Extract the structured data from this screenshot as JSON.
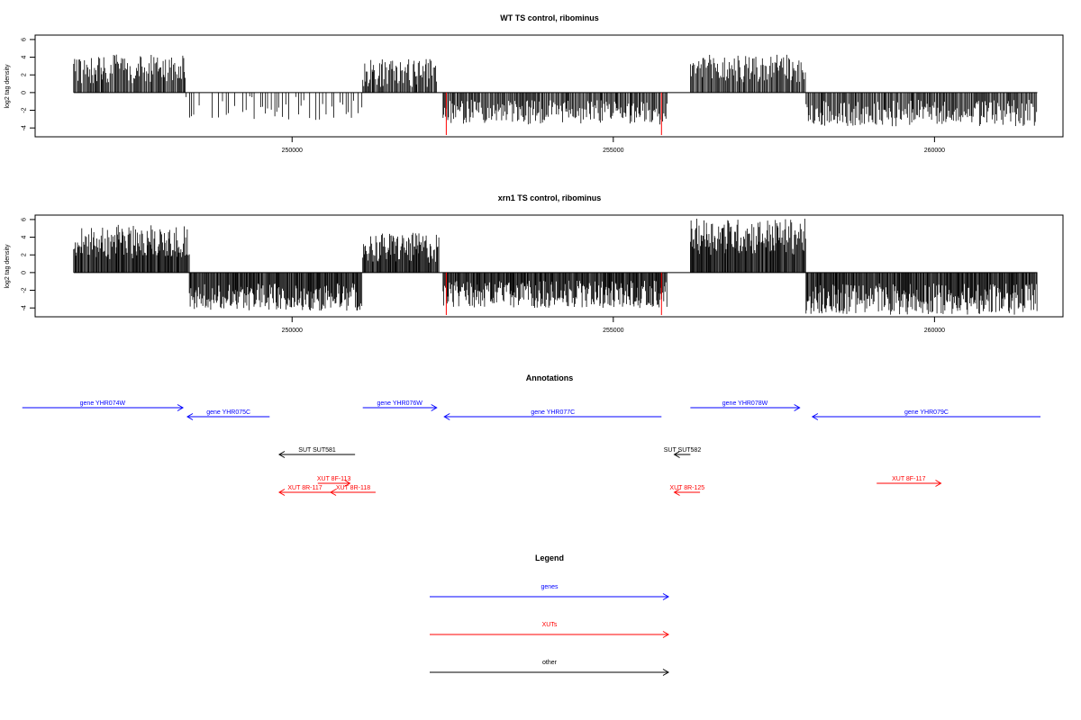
{
  "chart_data": [
    {
      "type": "bar",
      "title": "WT TS control, ribominus",
      "ylabel": "log2 tag density",
      "xlabel": "",
      "xlim": [
        246000,
        262000
      ],
      "ylim": [
        -5,
        6.5
      ],
      "yticks": [
        -4,
        -2,
        0,
        2,
        4,
        6
      ],
      "ytick_labels": [
        "-4",
        "-2",
        "0",
        "2",
        "4",
        "6"
      ],
      "xticks": [
        250000,
        255000,
        260000
      ],
      "xtick_labels": [
        "250000",
        "255000",
        "260000"
      ],
      "grid": false,
      "highlights": [
        {
          "x": 252400,
          "value": -4.8,
          "color": "#ff0000"
        },
        {
          "x": 255750,
          "value": -4.8,
          "color": "#ff0000"
        }
      ],
      "regions": [
        {
          "start": 246600,
          "end": 248350,
          "strand": "+",
          "min": 1.0,
          "max": 4.3
        },
        {
          "start": 248350,
          "end": 251100,
          "strand": "-",
          "min": 0.4,
          "max": 3.1,
          "sparse": true
        },
        {
          "start": 251100,
          "end": 252250,
          "strand": "+",
          "min": 0.6,
          "max": 3.8
        },
        {
          "start": 252350,
          "end": 255850,
          "strand": "-",
          "min": 0.8,
          "max": 3.6
        },
        {
          "start": 256200,
          "end": 258000,
          "strand": "+",
          "min": 0.9,
          "max": 4.3
        },
        {
          "start": 258000,
          "end": 261600,
          "strand": "-",
          "min": 0.8,
          "max": 3.8
        }
      ]
    },
    {
      "type": "bar",
      "title": "xrn1 TS control, ribominus",
      "ylabel": "log2 tag density",
      "xlabel": "",
      "xlim": [
        246000,
        262000
      ],
      "ylim": [
        -5,
        6.5
      ],
      "yticks": [
        -4,
        -2,
        0,
        2,
        4,
        6
      ],
      "ytick_labels": [
        "-4",
        "-2",
        "0",
        "2",
        "4",
        "6"
      ],
      "xticks": [
        250000,
        255000,
        260000
      ],
      "xtick_labels": [
        "250000",
        "255000",
        "260000"
      ],
      "grid": false,
      "highlights": [
        {
          "x": 252400,
          "value": -4.8,
          "color": "#ff0000"
        },
        {
          "x": 255750,
          "value": -4.8,
          "color": "#ff0000"
        }
      ],
      "regions": [
        {
          "start": 246600,
          "end": 248400,
          "strand": "+",
          "min": 1.5,
          "max": 5.4
        },
        {
          "start": 248400,
          "end": 251100,
          "strand": "-",
          "min": 1.2,
          "max": 4.3
        },
        {
          "start": 251100,
          "end": 252300,
          "strand": "+",
          "min": 1.0,
          "max": 4.5
        },
        {
          "start": 252350,
          "end": 255850,
          "strand": "-",
          "min": 0.9,
          "max": 4.0
        },
        {
          "start": 256200,
          "end": 258000,
          "strand": "+",
          "min": 2.0,
          "max": 6.1
        },
        {
          "start": 258000,
          "end": 261600,
          "strand": "-",
          "min": 1.2,
          "max": 4.8
        }
      ]
    }
  ],
  "annotations": {
    "title": "Annotations",
    "features": [
      {
        "label": "gene YHR074W",
        "start": 245800,
        "end": 248300,
        "strand": "+",
        "row": 0,
        "color": "#0000ff"
      },
      {
        "label": "gene YHR075C",
        "start": 248370,
        "end": 249650,
        "strand": "-",
        "row": 1,
        "color": "#0000ff"
      },
      {
        "label": "gene YHR076W",
        "start": 251100,
        "end": 252250,
        "strand": "+",
        "row": 0,
        "color": "#0000ff"
      },
      {
        "label": "gene YHR077C",
        "start": 252370,
        "end": 255750,
        "strand": "-",
        "row": 1,
        "color": "#0000ff"
      },
      {
        "label": "gene YHR078W",
        "start": 256200,
        "end": 257900,
        "strand": "+",
        "row": 0,
        "color": "#0000ff"
      },
      {
        "label": "gene YHR079C",
        "start": 258100,
        "end": 261650,
        "strand": "-",
        "row": 1,
        "color": "#0000ff"
      },
      {
        "label": "SUT SUT581",
        "start": 249800,
        "end": 250980,
        "strand": "-",
        "row": 3,
        "color": "#000000"
      },
      {
        "label": "SUT SUT582",
        "start": 255950,
        "end": 256200,
        "strand": "-",
        "row": 3,
        "color": "#000000"
      },
      {
        "label": "XUT 8F-113",
        "start": 250400,
        "end": 250900,
        "strand": "+",
        "row": 5,
        "color": "#ff0000"
      },
      {
        "label": "XUT 8R-117",
        "start": 249800,
        "end": 250600,
        "strand": "-",
        "row": 6,
        "color": "#ff0000"
      },
      {
        "label": "XUT 8R-118",
        "start": 250600,
        "end": 251300,
        "strand": "-",
        "row": 6,
        "color": "#ff0000"
      },
      {
        "label": "XUT 8R-125",
        "start": 255950,
        "end": 256350,
        "strand": "-",
        "row": 6,
        "color": "#ff0000"
      },
      {
        "label": "XUT 8F-117",
        "start": 259100,
        "end": 260100,
        "strand": "+",
        "row": 5,
        "color": "#ff0000"
      }
    ]
  },
  "legend": {
    "title": "Legend",
    "items": [
      {
        "label": "genes",
        "color": "#0000ff"
      },
      {
        "label": "XUTs",
        "color": "#ff0000"
      },
      {
        "label": "other",
        "color": "#000000"
      }
    ]
  }
}
